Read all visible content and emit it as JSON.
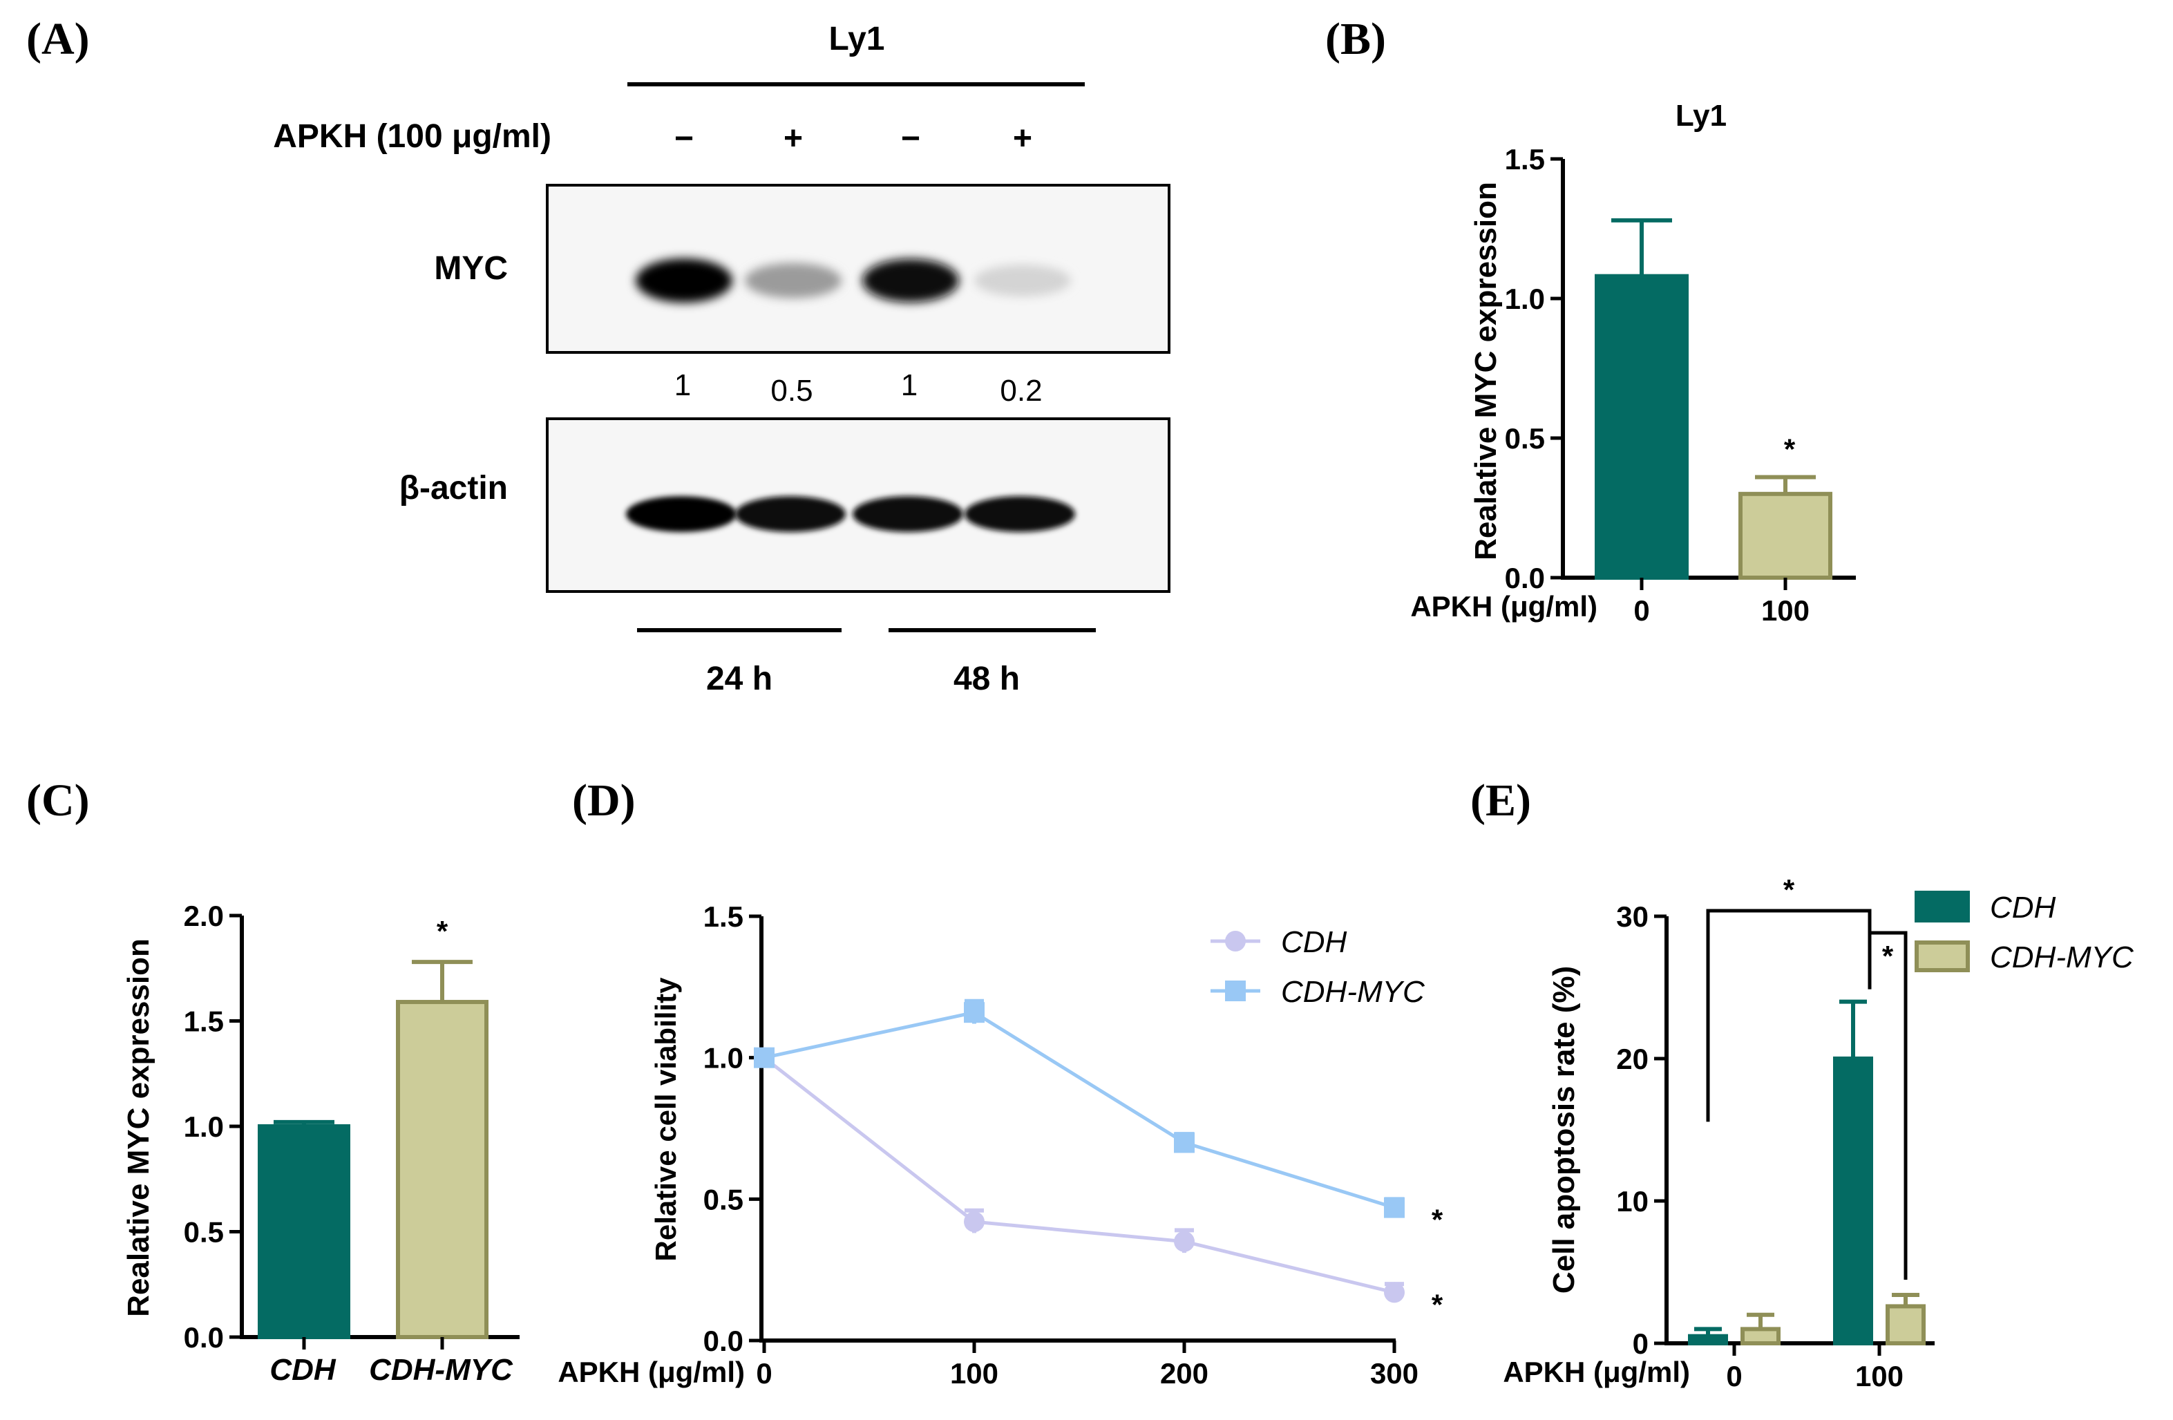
{
  "colors": {
    "teal": "#046b63",
    "khaki": "#cccc99",
    "khaki_edge": "#8f8f57",
    "lavender": "#c9c7ef",
    "lightblue": "#99c8f5",
    "axis": "#000000"
  },
  "panel_labels": [
    "(A)",
    "(B)",
    "(C)",
    "(D)",
    "(E)"
  ],
  "blot": {
    "cell_line": "Ly1",
    "treatment_label": "APKH (100 μg/ml)",
    "lanes": [
      "−",
      "+",
      "−",
      "+"
    ],
    "bands": [
      {
        "name": "MYC",
        "intensities": [
          1.0,
          0.35,
          0.95,
          0.1
        ]
      },
      {
        "name": "β-actin",
        "intensities": [
          1.0,
          0.95,
          0.95,
          0.95
        ]
      }
    ],
    "quant": [
      "1",
      "0.5",
      "1",
      "0.2"
    ],
    "times": [
      "24 h",
      "48 h"
    ]
  },
  "chart_data": [
    {
      "panel": "B",
      "type": "bar",
      "title": "Ly1",
      "xlabel": "APKH (μg/ml)",
      "ylabel": "Realative MYC expression",
      "categories": [
        "0",
        "100"
      ],
      "values": [
        1.08,
        0.3
      ],
      "errors": [
        0.2,
        0.06
      ],
      "significance": [
        "",
        "*"
      ],
      "ylim": [
        0,
        1.5
      ],
      "yticks": [
        "0.0",
        "0.5",
        "1.0",
        "1.5"
      ]
    },
    {
      "panel": "C",
      "type": "bar",
      "ylabel": "Realative MYC expression",
      "categories": [
        "CDH",
        "CDH-MYC"
      ],
      "values": [
        1.0,
        1.59
      ],
      "errors": [
        0.02,
        0.19
      ],
      "significance": [
        "",
        "*"
      ],
      "ylim": [
        0,
        2.0
      ],
      "yticks": [
        "0.0",
        "0.5",
        "1.0",
        "1.5",
        "2.0"
      ]
    },
    {
      "panel": "D",
      "type": "line",
      "xlabel": "APKH (μg/ml)",
      "ylabel": "Relative cell viability",
      "x": [
        0,
        100,
        200,
        300
      ],
      "xticks": [
        "0",
        "100",
        "200",
        "300"
      ],
      "ylim": [
        0,
        1.5
      ],
      "yticks": [
        "0.0",
        "0.5",
        "1.0",
        "1.5"
      ],
      "series": [
        {
          "name": "CDH",
          "values": [
            1.0,
            0.42,
            0.35,
            0.17
          ],
          "errors": [
            0,
            0.04,
            0.04,
            0.03
          ],
          "significance": "*"
        },
        {
          "name": "CDH-MYC",
          "values": [
            1.0,
            1.16,
            0.7,
            0.47
          ],
          "errors": [
            0,
            0.04,
            0.03,
            0.03
          ],
          "significance": "*"
        }
      ],
      "legend": "top-right"
    },
    {
      "panel": "E",
      "type": "bar",
      "xlabel": "APKH (μg/ml)",
      "ylabel": "Cell apoptosis rate (%)",
      "categories": [
        "0",
        "100"
      ],
      "series": [
        {
          "name": "CDH",
          "values": [
            0.5,
            20.0
          ],
          "errors": [
            0.5,
            4.0
          ]
        },
        {
          "name": "CDH-MYC",
          "values": [
            1.0,
            2.6
          ],
          "errors": [
            1.0,
            0.8
          ]
        }
      ],
      "ylim": [
        0,
        30
      ],
      "yticks": [
        "0",
        "10",
        "20",
        "30"
      ],
      "significance": [
        "*",
        "*"
      ],
      "legend": "top-right"
    }
  ]
}
